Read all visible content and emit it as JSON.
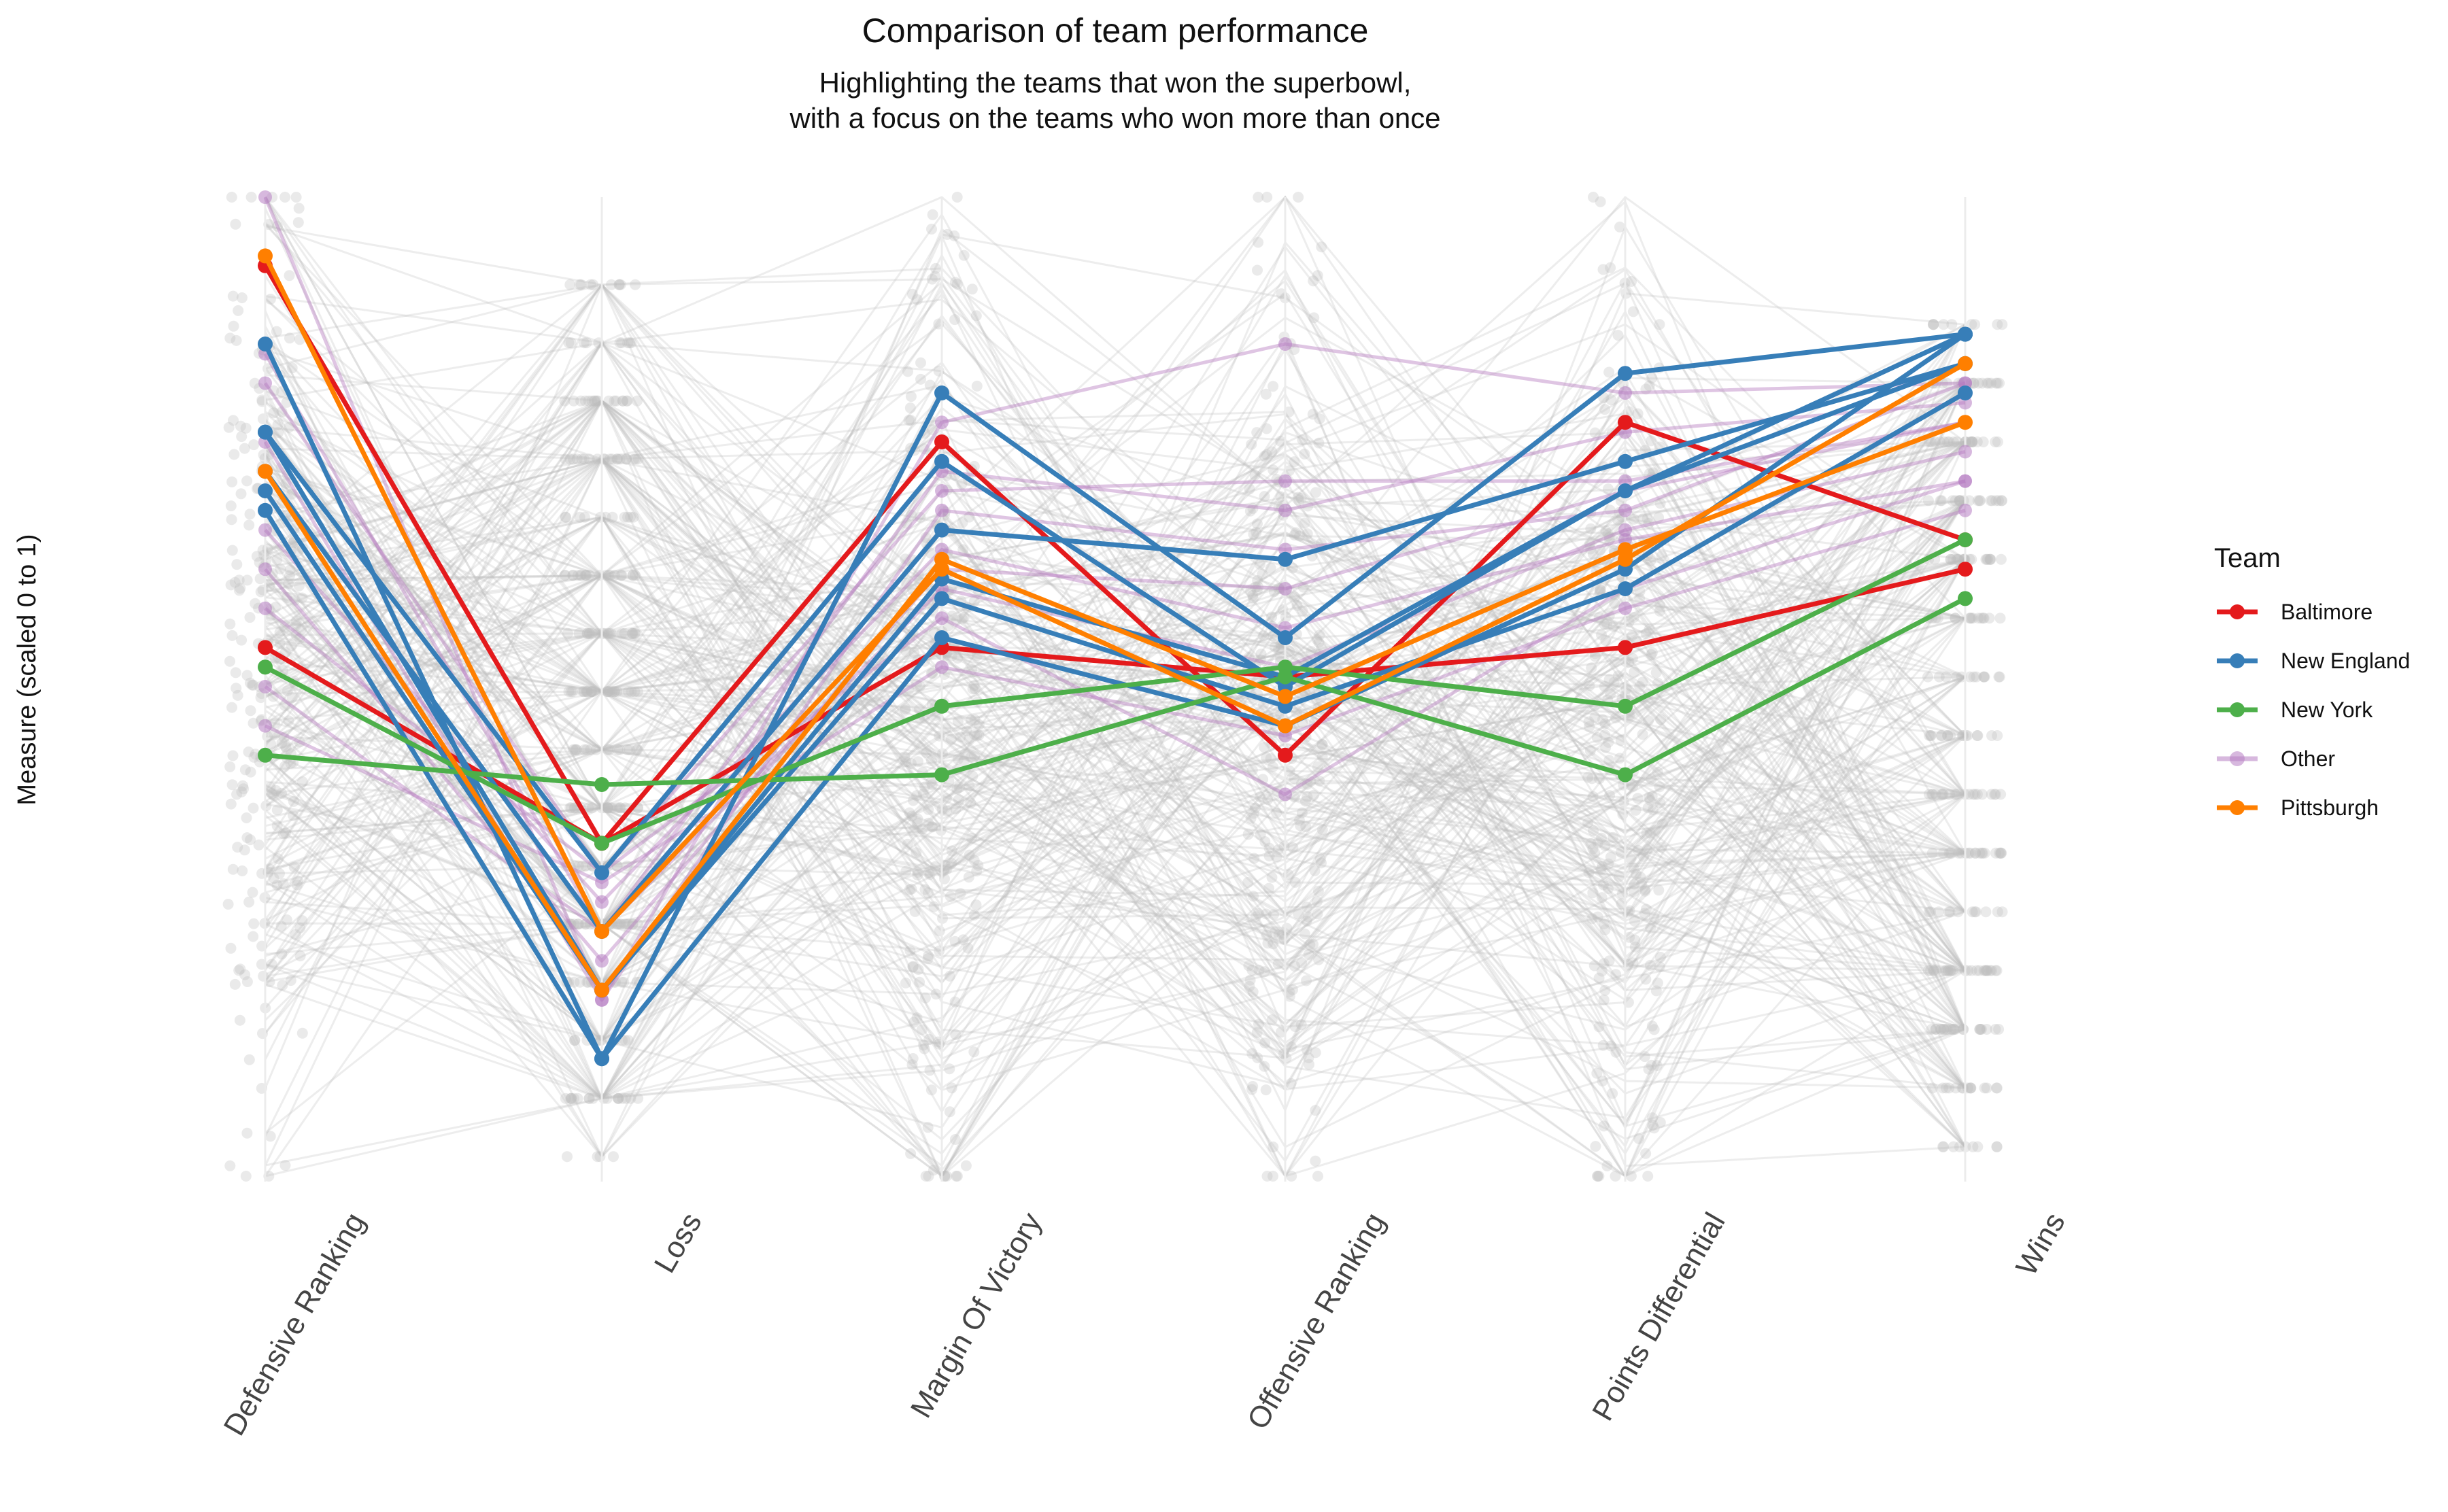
{
  "chart_data": {
    "type": "line",
    "title": "Comparison of team performance",
    "subtitle": [
      "Highlighting the teams that won the superbowl,",
      "with a focus on the teams who won more than once"
    ],
    "ylabel": "Measure (scaled 0 to 1)",
    "xlabel": "",
    "ylim": [
      0,
      1
    ],
    "categories": [
      "Defensive Ranking",
      "Loss",
      "Margin Of Victory",
      "Offensive Ranking",
      "Points Differential",
      "Wins"
    ],
    "legend": {
      "title": "Team",
      "position": "right",
      "entries": [
        "Baltimore",
        "New England",
        "New York",
        "Other",
        "Pittsburgh"
      ]
    },
    "colors": {
      "Baltimore": "#e41a1c",
      "New England": "#377eb8",
      "New York": "#4daf4a",
      "Other": "#b77ec2",
      "Pittsburgh": "#ff7f00",
      "background": "#bdbdbd"
    },
    "series": [
      {
        "team": "Baltimore",
        "values": [
          0.93,
          0.34,
          0.75,
          0.43,
          0.77,
          0.65
        ]
      },
      {
        "team": "Baltimore",
        "values": [
          0.54,
          0.34,
          0.54,
          0.51,
          0.54,
          0.62
        ]
      },
      {
        "team": "New England",
        "values": [
          0.85,
          0.12,
          0.8,
          0.55,
          0.82,
          0.86
        ]
      },
      {
        "team": "New England",
        "values": [
          0.76,
          0.31,
          0.73,
          0.5,
          0.7,
          0.86
        ]
      },
      {
        "team": "New England",
        "values": [
          0.72,
          0.25,
          0.66,
          0.63,
          0.73,
          0.83
        ]
      },
      {
        "team": "New England",
        "values": [
          0.7,
          0.19,
          0.61,
          0.51,
          0.7,
          0.83
        ]
      },
      {
        "team": "New England",
        "values": [
          0.68,
          0.12,
          0.55,
          0.46,
          0.62,
          0.86
        ]
      },
      {
        "team": "New England",
        "values": [
          0.76,
          0.19,
          0.59,
          0.48,
          0.6,
          0.8
        ]
      },
      {
        "team": "New York",
        "values": [
          0.52,
          0.34,
          0.48,
          0.52,
          0.48,
          0.65
        ]
      },
      {
        "team": "New York",
        "values": [
          0.43,
          0.4,
          0.41,
          0.51,
          0.41,
          0.59
        ]
      },
      {
        "team": "Pittsburgh",
        "values": [
          0.94,
          0.25,
          0.62,
          0.46,
          0.63,
          0.83
        ]
      },
      {
        "team": "Pittsburgh",
        "values": [
          0.72,
          0.19,
          0.63,
          0.49,
          0.64,
          0.77
        ]
      },
      {
        "team": "Other",
        "values": [
          1.0,
          0.18,
          0.77,
          0.85,
          0.8,
          0.81
        ]
      },
      {
        "team": "Other",
        "values": [
          0.84,
          0.25,
          0.72,
          0.68,
          0.76,
          0.79
        ]
      },
      {
        "team": "Other",
        "values": [
          0.81,
          0.31,
          0.7,
          0.71,
          0.71,
          0.77
        ]
      },
      {
        "team": "Other",
        "values": [
          0.75,
          0.18,
          0.68,
          0.64,
          0.68,
          0.81
        ]
      },
      {
        "team": "Other",
        "values": [
          0.66,
          0.28,
          0.64,
          0.56,
          0.65,
          0.71
        ]
      },
      {
        "team": "Other",
        "values": [
          0.62,
          0.22,
          0.62,
          0.6,
          0.7,
          0.77
        ]
      },
      {
        "team": "Other",
        "values": [
          0.58,
          0.31,
          0.57,
          0.39,
          0.6,
          0.71
        ]
      },
      {
        "team": "Other",
        "values": [
          0.5,
          0.25,
          0.6,
          0.52,
          0.66,
          0.74
        ]
      },
      {
        "team": "Other",
        "values": [
          0.46,
          0.3,
          0.52,
          0.45,
          0.58,
          0.68
        ]
      }
    ]
  }
}
